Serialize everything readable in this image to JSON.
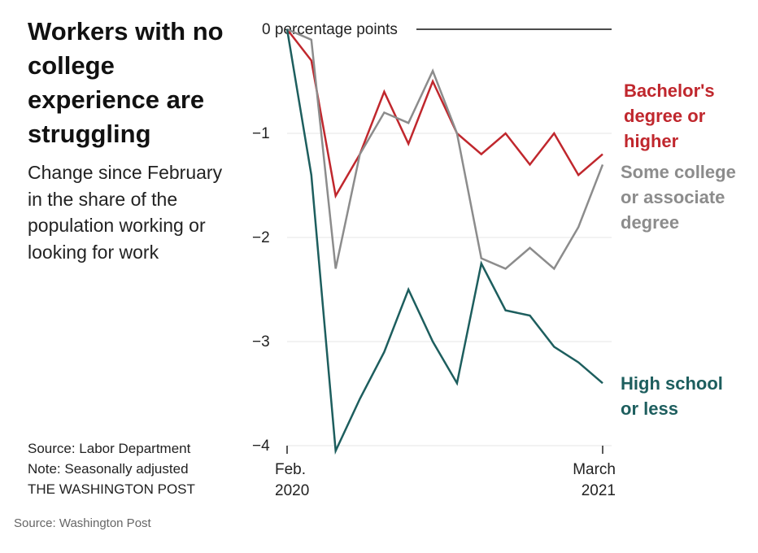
{
  "title": "Workers with no college experience are struggling",
  "subtitle": "Change since February in the share of the population working or looking for work",
  "notes": {
    "source": "Source:  Labor Department",
    "note": "Note: Seasonally adjusted",
    "publisher": "THE WASHINGTON POST"
  },
  "credit": "Source: Washington Post",
  "chart_data": {
    "type": "line",
    "ylabel": "percentage points",
    "ylim": [
      -4,
      0
    ],
    "yticks": [
      {
        "value": 0,
        "label": "0"
      },
      {
        "value": -1,
        "label": "−1"
      },
      {
        "value": -2,
        "label": "−2"
      },
      {
        "value": -3,
        "label": "−3"
      },
      {
        "value": -4,
        "label": "−4"
      }
    ],
    "zero_label": "0 percentage points",
    "x_start": {
      "line1": "Feb.",
      "line2": "2020"
    },
    "x_end": {
      "line1": "March",
      "line2": "2021"
    },
    "x": [
      "2020-02",
      "2020-03",
      "2020-04",
      "2020-05",
      "2020-06",
      "2020-07",
      "2020-08",
      "2020-09",
      "2020-10",
      "2020-11",
      "2020-12",
      "2021-01",
      "2021-02",
      "2021-03"
    ],
    "series": [
      {
        "name": "Bachelor's degree or higher",
        "label_lines": [
          "Bachelor's",
          "degree or",
          "higher"
        ],
        "color": "#c0272d",
        "values": [
          0,
          -0.3,
          -1.6,
          -1.2,
          -0.6,
          -1.1,
          -0.5,
          -1.0,
          -1.2,
          -1.0,
          -1.3,
          -1.0,
          -1.4,
          -1.2
        ]
      },
      {
        "name": "Some college or associate degree",
        "label_lines": [
          "Some college",
          "or associate",
          "degree"
        ],
        "color": "#8c8c8c",
        "values": [
          0,
          -0.1,
          -2.3,
          -1.2,
          -0.8,
          -0.9,
          -0.4,
          -1.0,
          -2.2,
          -2.3,
          -2.1,
          -2.3,
          -1.9,
          -1.3
        ]
      },
      {
        "name": "High school or less",
        "label_lines": [
          "High school",
          "or less"
        ],
        "color": "#1d5e5e",
        "values": [
          0,
          -1.4,
          -4.05,
          -3.55,
          -3.1,
          -2.5,
          -3.0,
          -3.4,
          -2.25,
          -2.7,
          -2.75,
          -3.05,
          -3.2,
          -3.4
        ]
      }
    ],
    "grid": true
  }
}
